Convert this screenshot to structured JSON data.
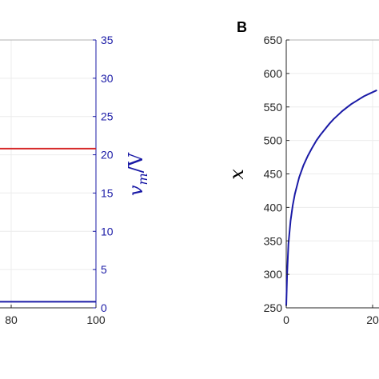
{
  "chart_data": [
    {
      "type": "line",
      "xticks": [
        "80",
        "100"
      ],
      "xlim": [
        0,
        100
      ],
      "right_axis": {
        "label_symbol": "v",
        "label_subscript": "m",
        "label_unit": "/V",
        "ylim": [
          0,
          35
        ],
        "yticks": [
          "0",
          "5",
          "10",
          "15",
          "20",
          "25",
          "30",
          "35"
        ],
        "color": "#1a1aa6"
      },
      "series": [
        {
          "color": "#d62728",
          "x": [
            0,
            100
          ],
          "y": [
            20.8,
            20.8
          ]
        },
        {
          "color": "#1a1aa6",
          "x": [
            0,
            100
          ],
          "y": [
            0.8,
            0.8
          ]
        }
      ],
      "grid": true
    },
    {
      "type": "line",
      "panel_label": "B",
      "ylabel": "x",
      "ylim": [
        250,
        650
      ],
      "yticks": [
        "250",
        "300",
        "350",
        "400",
        "450",
        "500",
        "550",
        "600",
        "650"
      ],
      "xticks": [
        "0",
        "20"
      ],
      "grid": true,
      "series": [
        {
          "color": "#1a1aa6",
          "x": [
            0,
            0.2,
            0.5,
            1,
            1.5,
            2,
            3,
            4,
            5,
            6,
            7,
            8,
            9,
            10,
            11,
            12,
            13,
            14,
            15,
            16,
            17,
            18,
            19,
            20,
            21
          ],
          "y": [
            253,
            300,
            345,
            380,
            403,
            420,
            445,
            463,
            477,
            489,
            500,
            509,
            517,
            525,
            532,
            538,
            544,
            549,
            554,
            558,
            562,
            566,
            569,
            572,
            575
          ]
        }
      ]
    }
  ]
}
